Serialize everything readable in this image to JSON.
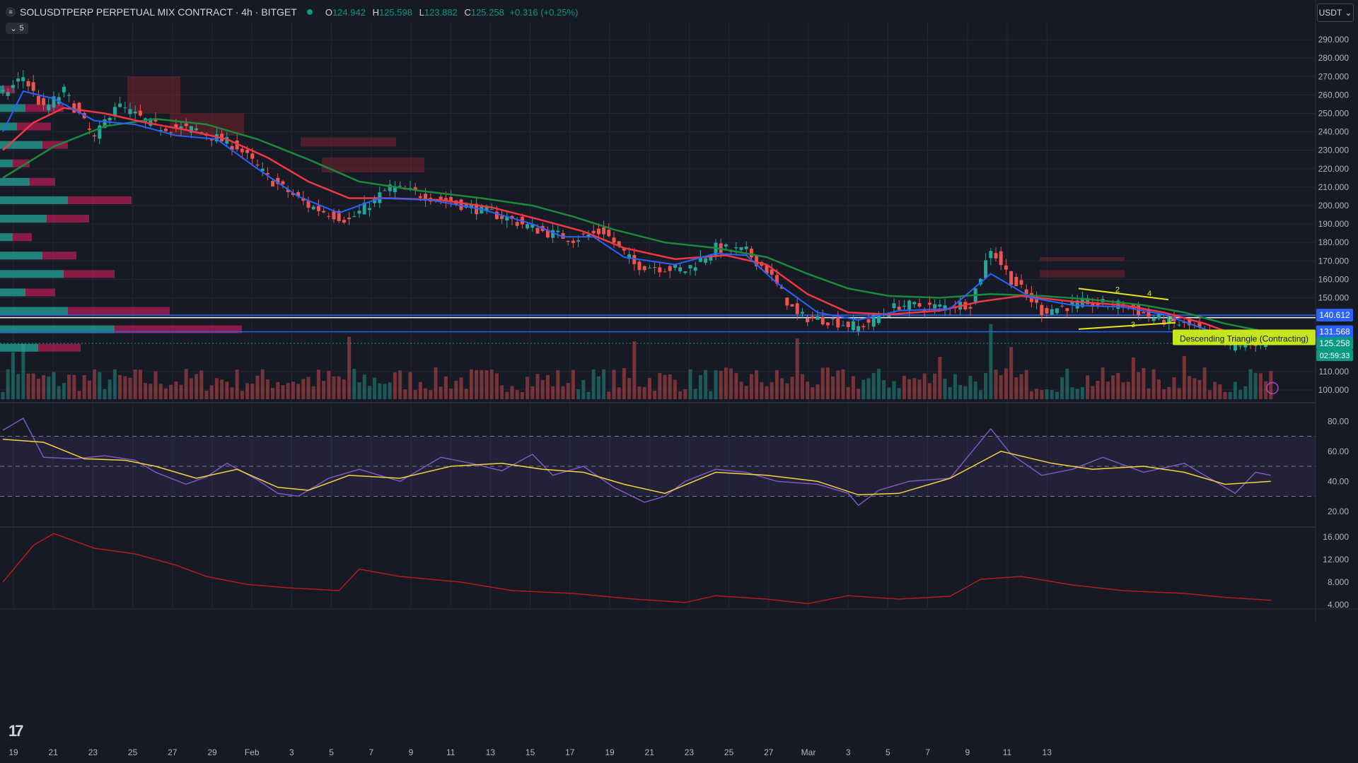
{
  "header": {
    "symbol": "SOLUSDTPERP PERPETUAL MIX CONTRACT · 4h · BITGET",
    "ohlc": [
      {
        "k": "O",
        "v": "124.942"
      },
      {
        "k": "H",
        "v": "125.598"
      },
      {
        "k": "L",
        "v": "123.882"
      },
      {
        "k": "C",
        "v": "125.258"
      }
    ],
    "change": "+0.316 (+0.25%)",
    "indicator_count": "5",
    "currency": "USDT",
    "symbol_icon": "solana-logo-icon",
    "logo": "tradingview-logo-icon"
  },
  "colors": {
    "bg": "#161a25",
    "up": "#26a69a",
    "down": "#ef5350",
    "ema_fast": "#2962ff",
    "ema_mid": "#f23645",
    "ema_slow": "#1b8a3a",
    "rsi": "#7e57c2",
    "rsi_ma": "#f7d23e"
  },
  "chart_data": [
    {
      "type": "candlestick",
      "title": "",
      "ylim": [
        95,
        300
      ],
      "y_ticks": [
        "290.000",
        "280.000",
        "270.000",
        "260.000",
        "250.000",
        "240.000",
        "230.000",
        "220.000",
        "210.000",
        "200.000",
        "190.000",
        "180.000",
        "170.000",
        "160.000",
        "150.000",
        "140.000",
        "110.000",
        "100.000"
      ],
      "x_ticks": [
        "19",
        "21",
        "23",
        "25",
        "27",
        "29",
        "Feb",
        "3",
        "5",
        "7",
        "9",
        "11",
        "13",
        "15",
        "17",
        "19",
        "21",
        "23",
        "25",
        "27",
        "Mar",
        "3",
        "5",
        "7",
        "9",
        "11",
        "13"
      ],
      "close_path": [
        [
          0,
          260
        ],
        [
          4,
          270
        ],
        [
          8,
          252
        ],
        [
          12,
          262
        ],
        [
          18,
          236
        ],
        [
          22,
          255
        ],
        [
          30,
          243
        ],
        [
          38,
          241
        ],
        [
          46,
          232
        ],
        [
          52,
          215
        ],
        [
          60,
          200
        ],
        [
          68,
          192
        ],
        [
          76,
          210
        ],
        [
          88,
          202
        ],
        [
          96,
          196
        ],
        [
          106,
          186
        ],
        [
          112,
          182
        ],
        [
          118,
          186
        ],
        [
          124,
          168
        ],
        [
          134,
          165
        ],
        [
          140,
          177
        ],
        [
          146,
          175
        ],
        [
          150,
          165
        ],
        [
          156,
          140
        ],
        [
          162,
          138
        ],
        [
          168,
          134
        ],
        [
          176,
          146
        ],
        [
          184,
          145
        ],
        [
          190,
          147
        ],
        [
          194,
          177
        ],
        [
          198,
          160
        ],
        [
          204,
          143
        ],
        [
          212,
          147
        ],
        [
          220,
          146
        ],
        [
          226,
          139
        ],
        [
          234,
          134
        ],
        [
          240,
          124
        ],
        [
          246,
          126
        ],
        [
          249,
          125.258
        ]
      ],
      "ema_fast_path": [
        [
          0,
          240
        ],
        [
          4,
          262
        ],
        [
          10,
          258
        ],
        [
          18,
          246
        ],
        [
          26,
          244
        ],
        [
          34,
          238
        ],
        [
          42,
          236
        ],
        [
          50,
          220
        ],
        [
          58,
          205
        ],
        [
          66,
          196
        ],
        [
          74,
          204
        ],
        [
          84,
          203
        ],
        [
          94,
          198
        ],
        [
          104,
          190
        ],
        [
          110,
          183
        ],
        [
          116,
          183
        ],
        [
          122,
          172
        ],
        [
          132,
          168
        ],
        [
          140,
          174
        ],
        [
          146,
          173
        ],
        [
          152,
          158
        ],
        [
          160,
          142
        ],
        [
          168,
          138
        ],
        [
          176,
          143
        ],
        [
          186,
          144
        ],
        [
          194,
          163
        ],
        [
          202,
          150
        ],
        [
          210,
          146
        ],
        [
          220,
          145
        ],
        [
          228,
          141
        ],
        [
          236,
          133
        ],
        [
          242,
          127
        ],
        [
          248,
          125.8
        ]
      ],
      "ema_mid_path": [
        [
          0,
          230
        ],
        [
          6,
          245
        ],
        [
          12,
          253
        ],
        [
          20,
          250
        ],
        [
          28,
          245
        ],
        [
          36,
          241
        ],
        [
          44,
          236
        ],
        [
          52,
          226
        ],
        [
          60,
          213
        ],
        [
          68,
          204
        ],
        [
          76,
          204
        ],
        [
          86,
          203
        ],
        [
          96,
          199
        ],
        [
          106,
          192
        ],
        [
          114,
          186
        ],
        [
          122,
          177
        ],
        [
          132,
          171
        ],
        [
          142,
          173
        ],
        [
          150,
          168
        ],
        [
          158,
          152
        ],
        [
          166,
          142
        ],
        [
          174,
          141
        ],
        [
          184,
          143
        ],
        [
          192,
          148
        ],
        [
          200,
          151
        ],
        [
          210,
          148
        ],
        [
          220,
          146
        ],
        [
          228,
          142
        ],
        [
          236,
          136
        ],
        [
          242,
          130
        ],
        [
          248,
          127.5
        ]
      ],
      "ema_slow_path": [
        [
          0,
          215
        ],
        [
          10,
          232
        ],
        [
          20,
          243
        ],
        [
          30,
          247
        ],
        [
          40,
          244
        ],
        [
          50,
          236
        ],
        [
          60,
          225
        ],
        [
          70,
          213
        ],
        [
          82,
          208
        ],
        [
          94,
          204
        ],
        [
          104,
          200
        ],
        [
          112,
          194
        ],
        [
          120,
          187
        ],
        [
          130,
          180
        ],
        [
          140,
          177
        ],
        [
          150,
          172
        ],
        [
          158,
          163
        ],
        [
          166,
          155
        ],
        [
          174,
          151
        ],
        [
          184,
          150
        ],
        [
          194,
          152
        ],
        [
          204,
          151
        ],
        [
          214,
          149
        ],
        [
          224,
          146
        ],
        [
          232,
          142
        ],
        [
          240,
          136
        ],
        [
          248,
          131.5
        ]
      ],
      "price_lines": [
        140.612,
        139.2,
        131.568
      ],
      "price_labels": [
        {
          "value": 140.612,
          "text": "140.612",
          "color": "#2962ff"
        },
        {
          "value": 131.568,
          "text": "131.568",
          "color": "#2962ff"
        },
        {
          "value": 125.258,
          "text": "125.258",
          "color": "#089981"
        }
      ],
      "countdown": "02:59:33",
      "pattern": {
        "label": "Descending Triangle (Contracting)",
        "points": [
          "2",
          "3",
          "4",
          "5"
        ]
      }
    },
    {
      "type": "volume_profile",
      "rows": [
        {
          "price": 260,
          "buy": 10,
          "sell": 25
        },
        {
          "price": 250,
          "buy": 60,
          "sell": 90
        },
        {
          "price": 240,
          "buy": 40,
          "sell": 80
        },
        {
          "price": 230,
          "buy": 100,
          "sell": 60
        },
        {
          "price": 220,
          "buy": 30,
          "sell": 40
        },
        {
          "price": 210,
          "buy": 70,
          "sell": 60
        },
        {
          "price": 200,
          "buy": 160,
          "sell": 150
        },
        {
          "price": 190,
          "buy": 110,
          "sell": 100
        },
        {
          "price": 180,
          "buy": 30,
          "sell": 45
        },
        {
          "price": 170,
          "buy": 100,
          "sell": 80
        },
        {
          "price": 160,
          "buy": 150,
          "sell": 120
        },
        {
          "price": 150,
          "buy": 60,
          "sell": 70
        },
        {
          "price": 140,
          "buy": 160,
          "sell": 240
        },
        {
          "price": 130,
          "buy": 270,
          "sell": 300
        },
        {
          "price": 120,
          "buy": 90,
          "sell": 100
        }
      ]
    },
    {
      "type": "line",
      "name": "RSI",
      "ylim": [
        10,
        90
      ],
      "y_ticks": [
        "80.00",
        "60.00",
        "40.00",
        "20.00"
      ],
      "levels": [
        70,
        50,
        30
      ],
      "rsi_path": [
        [
          0,
          74
        ],
        [
          4,
          82
        ],
        [
          8,
          56
        ],
        [
          14,
          55
        ],
        [
          20,
          57
        ],
        [
          26,
          54
        ],
        [
          30,
          46
        ],
        [
          36,
          38
        ],
        [
          40,
          43
        ],
        [
          44,
          52
        ],
        [
          50,
          41
        ],
        [
          54,
          32
        ],
        [
          58,
          30
        ],
        [
          64,
          42
        ],
        [
          70,
          48
        ],
        [
          78,
          40
        ],
        [
          86,
          56
        ],
        [
          92,
          52
        ],
        [
          98,
          47
        ],
        [
          104,
          58
        ],
        [
          108,
          44
        ],
        [
          114,
          50
        ],
        [
          120,
          36
        ],
        [
          126,
          26
        ],
        [
          130,
          30
        ],
        [
          134,
          40
        ],
        [
          140,
          48
        ],
        [
          146,
          46
        ],
        [
          152,
          40
        ],
        [
          160,
          38
        ],
        [
          166,
          32
        ],
        [
          168,
          24
        ],
        [
          172,
          34
        ],
        [
          178,
          40
        ],
        [
          186,
          42
        ],
        [
          194,
          75
        ],
        [
          198,
          58
        ],
        [
          204,
          44
        ],
        [
          210,
          48
        ],
        [
          216,
          56
        ],
        [
          224,
          46
        ],
        [
          232,
          52
        ],
        [
          238,
          40
        ],
        [
          242,
          32
        ],
        [
          246,
          46
        ],
        [
          249,
          44
        ]
      ],
      "rsi_ma_path": [
        [
          0,
          68
        ],
        [
          8,
          66
        ],
        [
          16,
          55
        ],
        [
          24,
          54
        ],
        [
          30,
          50
        ],
        [
          38,
          42
        ],
        [
          46,
          48
        ],
        [
          54,
          36
        ],
        [
          60,
          34
        ],
        [
          68,
          44
        ],
        [
          78,
          42
        ],
        [
          88,
          50
        ],
        [
          98,
          52
        ],
        [
          106,
          48
        ],
        [
          114,
          46
        ],
        [
          122,
          38
        ],
        [
          130,
          32
        ],
        [
          140,
          46
        ],
        [
          150,
          44
        ],
        [
          160,
          40
        ],
        [
          168,
          31
        ],
        [
          176,
          32
        ],
        [
          186,
          42
        ],
        [
          196,
          60
        ],
        [
          206,
          52
        ],
        [
          214,
          48
        ],
        [
          224,
          50
        ],
        [
          232,
          46
        ],
        [
          240,
          38
        ],
        [
          249,
          40
        ]
      ]
    },
    {
      "type": "line",
      "name": "ATR",
      "ylim": [
        3.5,
        17.5
      ],
      "y_ticks": [
        "16.000",
        "12.000",
        "8.000",
        "4.000"
      ],
      "atr_path": [
        [
          0,
          8
        ],
        [
          6,
          14.5
        ],
        [
          10,
          16.6
        ],
        [
          18,
          14
        ],
        [
          26,
          13
        ],
        [
          34,
          11
        ],
        [
          40,
          9
        ],
        [
          48,
          7.6
        ],
        [
          56,
          7
        ],
        [
          66,
          6.5
        ],
        [
          70,
          10.3
        ],
        [
          78,
          9
        ],
        [
          90,
          8
        ],
        [
          100,
          6.5
        ],
        [
          112,
          6
        ],
        [
          124,
          5
        ],
        [
          134,
          4.4
        ],
        [
          140,
          5.6
        ],
        [
          150,
          5
        ],
        [
          158,
          4.2
        ],
        [
          166,
          5.6
        ],
        [
          176,
          5
        ],
        [
          186,
          5.5
        ],
        [
          192,
          8.5
        ],
        [
          200,
          9
        ],
        [
          210,
          7.5
        ],
        [
          220,
          6.5
        ],
        [
          232,
          6
        ],
        [
          240,
          5.3
        ],
        [
          249,
          4.8
        ]
      ]
    }
  ]
}
